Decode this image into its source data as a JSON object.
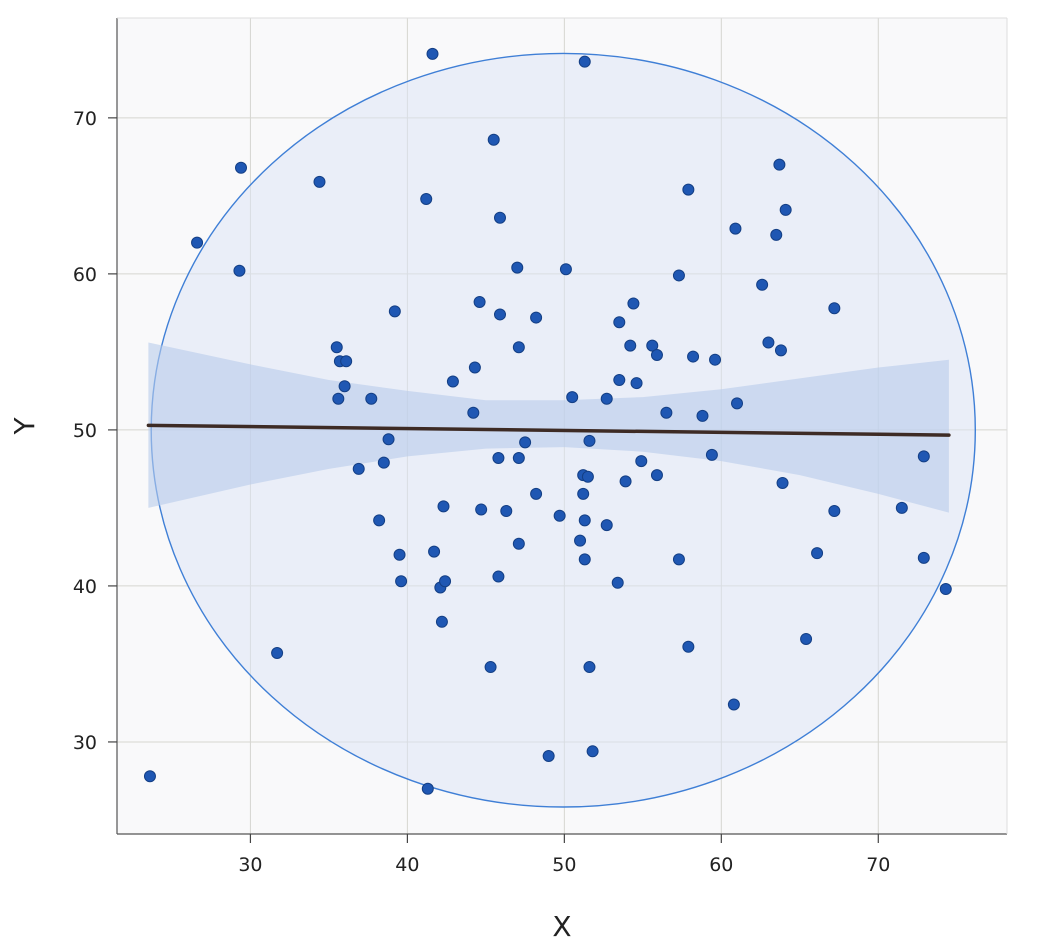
{
  "chart_data": {
    "type": "scatter",
    "title": "",
    "xlabel": "X",
    "ylabel": "Y",
    "xlim": [
      21.5,
      78.2
    ],
    "ylim": [
      24.1,
      76.4
    ],
    "xticks": [
      30,
      40,
      50,
      60,
      70
    ],
    "yticks": [
      30,
      40,
      50,
      60,
      70
    ],
    "grid": true,
    "colors": {
      "points": "#1f57b3",
      "point_edge": "#143f85",
      "regression_line": "#3d2b25",
      "confidence_band": "#b7cbeb",
      "ellipse_fill": "#dbe4f5",
      "ellipse_edge": "#3f7fd6",
      "plot_background": "#f9f9fa",
      "grid": "#d6d6d0"
    },
    "regression": {
      "x_range": [
        23.5,
        74.5
      ],
      "intercept": 50.58,
      "slope": -0.0123,
      "band": [
        {
          "x": 23.5,
          "lo": 45.0,
          "hi": 55.6
        },
        {
          "x": 30.0,
          "lo": 46.5,
          "hi": 54.2
        },
        {
          "x": 35.0,
          "lo": 47.5,
          "hi": 53.2
        },
        {
          "x": 40.0,
          "lo": 48.3,
          "hi": 52.5
        },
        {
          "x": 45.0,
          "lo": 48.8,
          "hi": 51.9
        },
        {
          "x": 50.0,
          "lo": 48.9,
          "hi": 51.9
        },
        {
          "x": 55.0,
          "lo": 48.6,
          "hi": 52.1
        },
        {
          "x": 60.0,
          "lo": 48.0,
          "hi": 52.6
        },
        {
          "x": 65.0,
          "lo": 47.1,
          "hi": 53.3
        },
        {
          "x": 70.0,
          "lo": 45.9,
          "hi": 54.0
        },
        {
          "x": 74.5,
          "lo": 44.7,
          "hi": 54.5
        }
      ]
    },
    "ellipse": {
      "cx": 49.93,
      "cy": 49.98,
      "rx": 26.25,
      "ry": 24.15
    },
    "series": [
      {
        "points": [
          [
            23.6,
            27.8
          ],
          [
            26.6,
            62.0
          ],
          [
            29.3,
            60.2
          ],
          [
            29.4,
            66.8
          ],
          [
            31.7,
            35.7
          ],
          [
            34.4,
            65.9
          ],
          [
            35.5,
            55.3
          ],
          [
            35.6,
            52.0
          ],
          [
            35.7,
            54.4
          ],
          [
            36.0,
            52.8
          ],
          [
            36.1,
            54.4
          ],
          [
            36.9,
            47.5
          ],
          [
            37.7,
            52.0
          ],
          [
            38.2,
            44.2
          ],
          [
            38.5,
            47.9
          ],
          [
            38.8,
            49.4
          ],
          [
            39.2,
            57.6
          ],
          [
            39.5,
            42.0
          ],
          [
            39.6,
            40.3
          ],
          [
            41.2,
            64.8
          ],
          [
            41.3,
            27.0
          ],
          [
            41.6,
            74.1
          ],
          [
            41.7,
            42.2
          ],
          [
            42.1,
            39.9
          ],
          [
            42.2,
            37.7
          ],
          [
            42.3,
            45.1
          ],
          [
            42.4,
            40.3
          ],
          [
            42.9,
            53.1
          ],
          [
            44.2,
            51.1
          ],
          [
            44.3,
            54.0
          ],
          [
            44.6,
            58.2
          ],
          [
            44.7,
            44.9
          ],
          [
            45.3,
            34.8
          ],
          [
            45.5,
            68.6
          ],
          [
            45.8,
            40.6
          ],
          [
            45.8,
            48.2
          ],
          [
            45.9,
            57.4
          ],
          [
            45.9,
            63.6
          ],
          [
            46.3,
            44.8
          ],
          [
            47.0,
            60.4
          ],
          [
            47.1,
            55.3
          ],
          [
            47.1,
            48.2
          ],
          [
            47.1,
            42.7
          ],
          [
            47.5,
            49.2
          ],
          [
            48.2,
            57.2
          ],
          [
            48.2,
            45.9
          ],
          [
            49.0,
            29.1
          ],
          [
            49.7,
            44.5
          ],
          [
            50.1,
            60.3
          ],
          [
            50.5,
            52.1
          ],
          [
            51.0,
            42.9
          ],
          [
            51.3,
            73.6
          ],
          [
            51.2,
            47.1
          ],
          [
            51.2,
            45.9
          ],
          [
            51.3,
            44.2
          ],
          [
            51.3,
            41.7
          ],
          [
            51.5,
            47.0
          ],
          [
            51.6,
            49.3
          ],
          [
            51.6,
            34.8
          ],
          [
            51.8,
            29.4
          ],
          [
            52.7,
            52.0
          ],
          [
            52.7,
            43.9
          ],
          [
            53.4,
            40.2
          ],
          [
            53.5,
            56.9
          ],
          [
            53.5,
            53.2
          ],
          [
            53.9,
            46.7
          ],
          [
            54.2,
            55.4
          ],
          [
            54.4,
            58.1
          ],
          [
            54.6,
            53.0
          ],
          [
            54.9,
            48.0
          ],
          [
            55.6,
            55.4
          ],
          [
            55.9,
            54.8
          ],
          [
            55.9,
            47.1
          ],
          [
            56.5,
            51.1
          ],
          [
            57.3,
            59.9
          ],
          [
            57.3,
            41.7
          ],
          [
            57.9,
            65.4
          ],
          [
            57.9,
            36.1
          ],
          [
            58.2,
            54.7
          ],
          [
            58.8,
            50.9
          ],
          [
            59.4,
            48.4
          ],
          [
            59.6,
            54.5
          ],
          [
            60.8,
            32.4
          ],
          [
            60.9,
            62.9
          ],
          [
            61.0,
            51.7
          ],
          [
            62.6,
            59.3
          ],
          [
            63.0,
            55.6
          ],
          [
            63.5,
            62.5
          ],
          [
            63.7,
            67.0
          ],
          [
            63.8,
            55.1
          ],
          [
            63.9,
            46.6
          ],
          [
            64.1,
            64.1
          ],
          [
            65.4,
            36.6
          ],
          [
            66.1,
            42.1
          ],
          [
            67.2,
            57.8
          ],
          [
            67.2,
            44.8
          ],
          [
            71.5,
            45.0
          ],
          [
            72.9,
            48.3
          ],
          [
            72.9,
            41.8
          ],
          [
            74.3,
            39.8
          ]
        ]
      }
    ]
  }
}
